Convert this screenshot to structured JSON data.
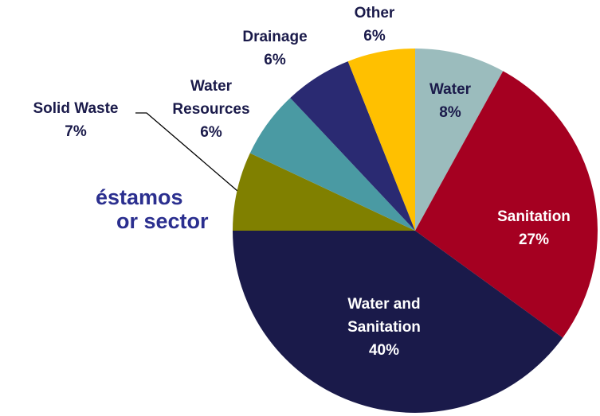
{
  "chart_data": {
    "type": "pie",
    "title_lines": [
      "éstamos",
      "or sector"
    ],
    "categories": [
      "Water",
      "Sanitation",
      "Water and Sanitation",
      "Solid Waste",
      "Water Resources",
      "Drainage",
      "Other"
    ],
    "values": [
      8,
      27,
      40,
      7,
      6,
      6,
      6
    ],
    "value_labels": [
      "8%",
      "27%",
      "40%",
      "7%",
      "6%",
      "6%",
      "6%"
    ],
    "colors": [
      "#9bbcbd",
      "#a50021",
      "#1a1a4a",
      "#808000",
      "#4a9aa3",
      "#2a2a72",
      "#ffc000"
    ]
  }
}
